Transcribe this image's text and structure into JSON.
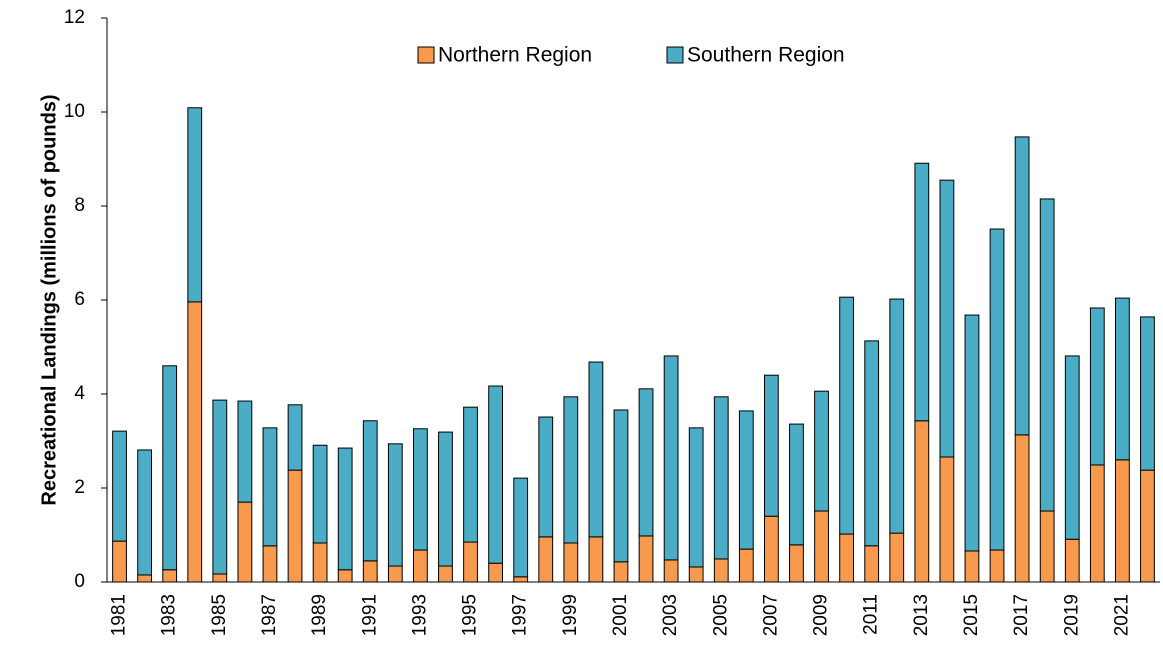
{
  "chart_data": {
    "type": "stacked_bar",
    "y_label": "Recreational Landings (millions of pounds)",
    "categories": [
      "1981",
      null,
      "1983",
      null,
      "1985",
      null,
      "1987",
      null,
      "1989",
      null,
      "1991",
      null,
      "1993",
      null,
      "1995",
      null,
      "1997",
      null,
      "1999",
      null,
      "2001",
      null,
      "2003",
      null,
      "2005",
      null,
      "2007",
      null,
      "2009",
      null,
      "2011",
      null,
      "2013",
      null,
      "2015",
      null,
      "2017",
      null,
      "2019",
      null,
      "2021",
      null
    ],
    "series": [
      {
        "name": "Northern Region",
        "color": "#f79a4d",
        "values": [
          0.87,
          0.15,
          0.26,
          5.96,
          0.17,
          1.7,
          0.77,
          2.38,
          0.83,
          0.26,
          0.45,
          0.34,
          0.68,
          0.34,
          0.85,
          0.4,
          0.11,
          0.96,
          0.83,
          0.96,
          0.43,
          0.98,
          0.47,
          0.32,
          0.49,
          0.7,
          1.4,
          0.79,
          1.51,
          1.02,
          0.77,
          1.04,
          3.43,
          2.66,
          0.66,
          0.68,
          3.13,
          1.51,
          0.91,
          2.49,
          2.6,
          2.38
        ]
      },
      {
        "name": "Southern Region",
        "color": "#4bacc6",
        "values": [
          2.34,
          2.66,
          4.34,
          4.13,
          3.7,
          2.15,
          2.51,
          1.39,
          2.08,
          2.59,
          2.98,
          2.6,
          2.58,
          2.85,
          2.87,
          3.77,
          2.1,
          2.55,
          3.11,
          3.72,
          3.23,
          3.13,
          4.34,
          2.96,
          3.45,
          2.94,
          3.0,
          2.57,
          2.55,
          5.04,
          4.36,
          4.98,
          5.48,
          5.89,
          5.02,
          6.83,
          6.34,
          6.64,
          3.9,
          3.34,
          3.44,
          3.26
        ]
      }
    ],
    "ylim": [
      0,
      12
    ],
    "yticks": [
      0,
      2,
      4,
      6,
      8,
      10,
      12
    ],
    "legend": "top"
  }
}
